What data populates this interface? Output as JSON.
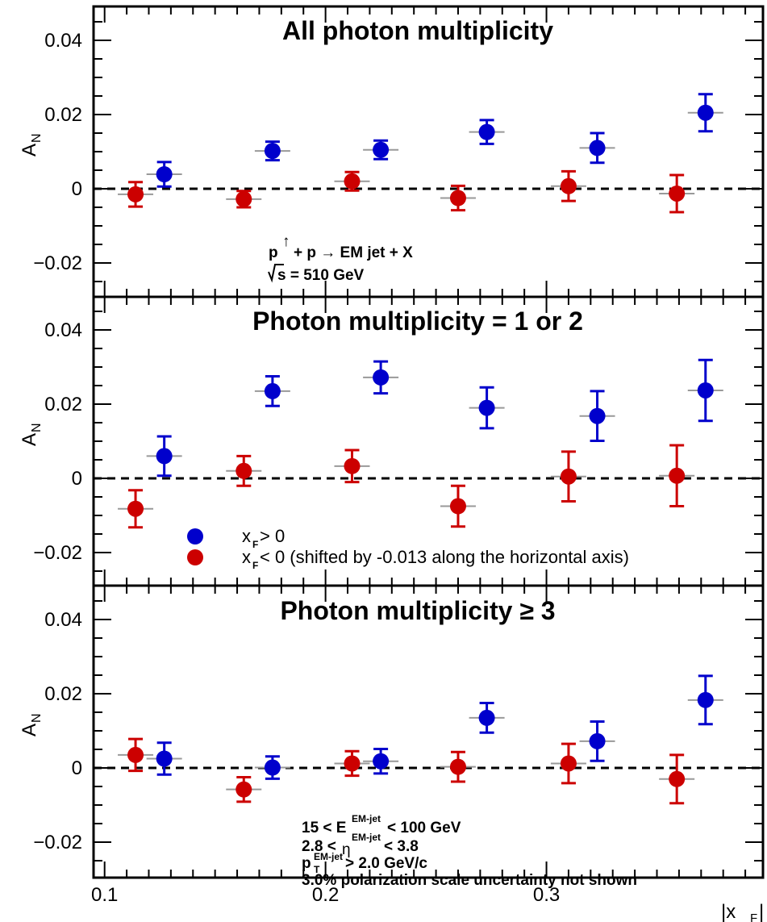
{
  "chart_data": [
    {
      "type": "scatter",
      "title": "All photon multiplicity",
      "ylabel": "A",
      "ylabel_sub": "N",
      "xlim": [
        0.095,
        0.398
      ],
      "ylim": [
        -0.0292,
        0.0492
      ],
      "yticks": [
        "0.04",
        "0.02",
        "0",
        "−0.02"
      ],
      "series": [
        {
          "name": "x_F > 0",
          "color": "#0000cc",
          "x": [
            0.127,
            0.176,
            0.225,
            0.273,
            0.323,
            0.372
          ],
          "y": [
            0.0039,
            0.0102,
            0.0105,
            0.0153,
            0.011,
            0.0205
          ],
          "err": [
            0.0033,
            0.0025,
            0.0025,
            0.0032,
            0.004,
            0.005
          ]
        },
        {
          "name": "x_F < 0 (shifted by -0.013 along the horizontal axis)",
          "color": "#cc0000",
          "x": [
            0.114,
            0.163,
            0.212,
            0.26,
            0.31,
            0.359
          ],
          "y": [
            -0.0015,
            -0.0028,
            0.002,
            -0.0025,
            0.0007,
            -0.0013
          ],
          "err": [
            0.0033,
            0.0022,
            0.0025,
            0.0033,
            0.004,
            0.005
          ]
        }
      ],
      "annotations": {
        "reaction_a": "p",
        "reaction_b": "+ p  → EM jet + X",
        "energy": "s = 510 GeV"
      }
    },
    {
      "type": "scatter",
      "title": "Photon multiplicity = 1 or 2",
      "ylabel": "A",
      "ylabel_sub": "N",
      "xlim": [
        0.095,
        0.398
      ],
      "ylim": [
        -0.0292,
        0.0492
      ],
      "yticks": [
        "0.04",
        "0.02",
        "0",
        "−0.02"
      ],
      "series": [
        {
          "name": "x_F > 0",
          "color": "#0000cc",
          "x": [
            0.127,
            0.176,
            0.225,
            0.273,
            0.323,
            0.372
          ],
          "y": [
            0.006,
            0.0235,
            0.0272,
            0.019,
            0.0168,
            0.0237
          ],
          "err": [
            0.0053,
            0.004,
            0.0043,
            0.0055,
            0.0067,
            0.0082
          ]
        },
        {
          "name": "x_F < 0 (shifted by -0.013 along the horizontal axis)",
          "color": "#cc0000",
          "x": [
            0.114,
            0.163,
            0.212,
            0.26,
            0.31,
            0.359
          ],
          "y": [
            -0.0082,
            0.002,
            0.0033,
            -0.0075,
            0.0005,
            0.0007
          ],
          "err": [
            0.005,
            0.004,
            0.0043,
            0.0055,
            0.0067,
            0.0082
          ]
        }
      ],
      "legend": {
        "pos_label": "x",
        "pos_sub": "F",
        "pos_rest": " > 0",
        "neg_label": "x",
        "neg_sub": "F",
        "neg_rest": " < 0 (shifted by -0.013 along the horizontal axis)"
      }
    },
    {
      "type": "scatter",
      "title": "Photon multiplicity  ≥ 3",
      "ylabel": "A",
      "ylabel_sub": "N",
      "xlabel": "|x",
      "xlabel_sub": "F",
      "xlabel_end": "|",
      "xlim": [
        0.095,
        0.398
      ],
      "ylim": [
        -0.0292,
        0.0492
      ],
      "yticks": [
        "0.04",
        "0.02",
        "0",
        "−0.02"
      ],
      "xticks": [
        "0.1",
        "0.2",
        "0.3"
      ],
      "series": [
        {
          "name": "x_F > 0",
          "color": "#0000cc",
          "x": [
            0.127,
            0.176,
            0.225,
            0.273,
            0.323,
            0.372
          ],
          "y": [
            0.0025,
            0.0001,
            0.0018,
            0.0135,
            0.0072,
            0.0183
          ],
          "err": [
            0.0043,
            0.003,
            0.0033,
            0.004,
            0.0053,
            0.0065
          ]
        },
        {
          "name": "x_F < 0 (shifted by -0.013 along the horizontal axis)",
          "color": "#cc0000",
          "x": [
            0.114,
            0.163,
            0.212,
            0.26,
            0.31,
            0.359
          ],
          "y": [
            0.0035,
            -0.0058,
            0.0012,
            0.0003,
            0.0012,
            -0.003
          ],
          "err": [
            0.0043,
            0.0033,
            0.0033,
            0.004,
            0.0053,
            0.0065
          ]
        }
      ],
      "annotations": {
        "line1_a": "15 < E",
        "line1_sup": "EM-jet",
        "line1_b": " <  100 GeV",
        "line2_a": "2.8 < ",
        "line2_eta": "η",
        "line2_sup": "EM-jet",
        "line2_b": " < 3.8",
        "line3_a": "p",
        "line3_sup": "EM-jet",
        "line3_sub": "T",
        "line3_b": " > 2.0 GeV/c",
        "line4": "3.0% polarization scale uncertainty not shown"
      }
    }
  ]
}
